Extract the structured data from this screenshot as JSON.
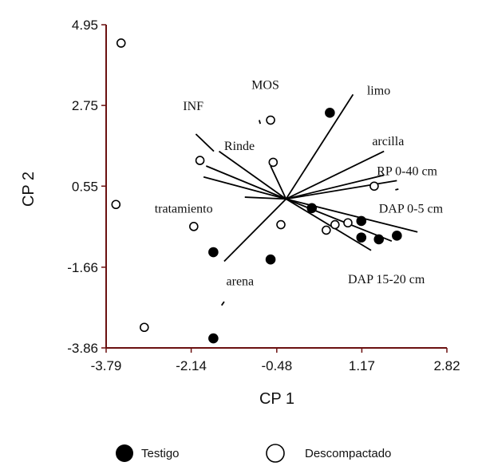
{
  "chart_data": {
    "type": "scatter",
    "xlabel": "CP 1",
    "ylabel": "CP 2",
    "xlim": [
      -3.79,
      2.82
    ],
    "ylim": [
      -3.86,
      4.95
    ],
    "x_ticks": [
      "-3.79",
      "-2.14",
      "-0.48",
      "1.17",
      "2.82"
    ],
    "y_ticks": [
      "4.95",
      "2.75",
      "0.55",
      "-1.66",
      "-3.86"
    ],
    "axis_color": "#6b1010",
    "series": [
      {
        "name": "Testigo",
        "marker": "filled",
        "color": "#000000",
        "points": [
          [
            0.55,
            2.55
          ],
          [
            0.2,
            -0.05
          ],
          [
            1.16,
            -0.4
          ],
          [
            1.16,
            -0.85
          ],
          [
            1.5,
            -0.9
          ],
          [
            1.85,
            -0.8
          ],
          [
            -1.71,
            -1.25
          ],
          [
            -0.6,
            -1.45
          ],
          [
            -1.71,
            -3.6
          ]
        ]
      },
      {
        "name": "Descompactado",
        "marker": "open",
        "color": "#000000",
        "points": [
          [
            -3.5,
            4.45
          ],
          [
            -0.6,
            2.35
          ],
          [
            -1.97,
            1.25
          ],
          [
            -0.55,
            1.2
          ],
          [
            1.41,
            0.55
          ],
          [
            -3.6,
            0.05
          ],
          [
            -2.09,
            -0.55
          ],
          [
            -0.4,
            -0.5
          ],
          [
            0.48,
            -0.65
          ],
          [
            0.65,
            -0.5
          ],
          [
            0.9,
            -0.45
          ],
          [
            -3.05,
            -3.3
          ]
        ]
      }
    ],
    "vectors": [
      {
        "name": "MOS",
        "x1": -0.82,
        "y1": 2.35,
        "x2": -0.8,
        "y2": 2.25
      },
      {
        "name": "INF",
        "x1": -2.05,
        "y1": 1.97,
        "x2": -1.7,
        "y2": 1.5
      },
      {
        "name": "Rinde",
        "x1": -1.6,
        "y1": 1.5,
        "x2": -0.3,
        "y2": 0.2
      },
      {
        "name": "",
        "x1": -0.6,
        "y1": 1.1,
        "x2": -0.3,
        "y2": 0.2
      },
      {
        "name": "",
        "x1": -1.85,
        "y1": 1.1,
        "x2": -0.3,
        "y2": 0.2
      },
      {
        "name": "",
        "x1": -1.9,
        "y1": 0.8,
        "x2": -0.3,
        "y2": 0.2
      },
      {
        "name": "tratamiento",
        "x1": -1.1,
        "y1": 0.25,
        "x2": -0.3,
        "y2": 0.2
      },
      {
        "name": "limo",
        "x1": -0.3,
        "y1": 0.2,
        "x2": 1.0,
        "y2": 3.05
      },
      {
        "name": "arcilla",
        "x1": -0.3,
        "y1": 0.2,
        "x2": 1.6,
        "y2": 1.5
      },
      {
        "name": "RP 0-40 cm",
        "x1": -0.3,
        "y1": 0.2,
        "x2": 1.6,
        "y2": 0.85
      },
      {
        "name": "",
        "x1": -0.3,
        "y1": 0.2,
        "x2": 1.85,
        "y2": 0.7
      },
      {
        "name": "DAP 0-5 cm",
        "x1": -0.3,
        "y1": 0.2,
        "x2": 2.25,
        "y2": -0.7
      },
      {
        "name": "",
        "x1": -0.3,
        "y1": 0.2,
        "x2": 1.75,
        "y2": -0.95
      },
      {
        "name": "DAP 15-20 cm",
        "x1": -0.3,
        "y1": 0.2,
        "x2": 1.35,
        "y2": -1.2
      },
      {
        "name": "arena",
        "x1": -0.3,
        "y1": 0.2,
        "x2": -1.5,
        "y2": -1.5
      },
      {
        "name": "",
        "x1": -1.55,
        "y1": -2.7,
        "x2": -1.5,
        "y2": -2.6
      },
      {
        "name": "",
        "x1": 1.82,
        "y1": 0.45,
        "x2": 1.88,
        "y2": 0.47
      }
    ],
    "var_labels": [
      {
        "text": "MOS",
        "x": -0.97,
        "y": 3.2
      },
      {
        "text": "INF",
        "x": -2.3,
        "y": 2.62
      },
      {
        "text": "limo",
        "x": 1.27,
        "y": 3.05
      },
      {
        "text": "Rinde",
        "x": -1.5,
        "y": 1.54
      },
      {
        "text": "arcilla",
        "x": 1.37,
        "y": 1.67
      },
      {
        "text": "RP 0-40 cm",
        "x": 1.46,
        "y": 0.85
      },
      {
        "text": "tratamiento",
        "x": -2.85,
        "y": -0.17
      },
      {
        "text": "DAP 0-5 cm",
        "x": 1.5,
        "y": -0.17
      },
      {
        "text": "arena",
        "x": -1.46,
        "y": -2.15
      },
      {
        "text": "DAP 15-20 cm",
        "x": 0.9,
        "y": -2.1
      }
    ],
    "legend": {
      "placement": "bottom",
      "entries": [
        {
          "name": "Testigo",
          "marker": "filled"
        },
        {
          "name": "Descompactado",
          "marker": "open"
        }
      ]
    }
  }
}
